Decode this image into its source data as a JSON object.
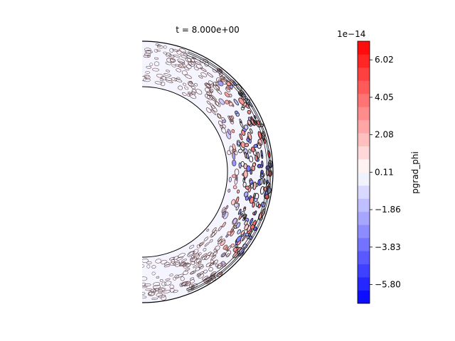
{
  "chart_data": {
    "type": "heatmap",
    "title": "t = 8.000e+00",
    "colorbar": {
      "label": "pgrad_phi",
      "offset_text": "1e−14",
      "scale_exponent": -14,
      "ticks": [
        "6.02",
        "4.05",
        "2.08",
        "0.11",
        "−1.86",
        "−3.83",
        "−5.80"
      ],
      "tick_values": [
        6.02,
        4.05,
        2.08,
        0.11,
        -1.86,
        -3.83,
        -5.8
      ],
      "range": [
        -6.79,
        7.0
      ],
      "levels": 20,
      "colormap": "bwr",
      "low_color": "#0000ff",
      "mid_color": "#ffffff",
      "high_color": "#ff0000"
    },
    "domain": {
      "shape": "half-annulus",
      "orientation": "right-facing",
      "inner_radius_ratio": 0.65
    },
    "field_description": "azimuthal pressure-gradient contours in a spherical shell; strongest positive and negative values near the outer equatorial boundary"
  }
}
